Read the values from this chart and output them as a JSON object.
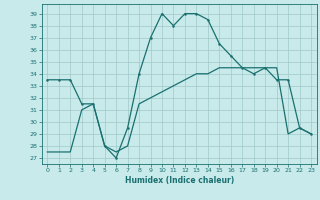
{
  "xlabel": "Humidex (Indice chaleur)",
  "ylabel": "",
  "bg_color": "#c8eaea",
  "line_color": "#1a7070",
  "grid_color": "#a0c8c8",
  "xlim": [
    -0.5,
    23.5
  ],
  "ylim": [
    26.5,
    39.8
  ],
  "yticks": [
    27,
    28,
    29,
    30,
    31,
    32,
    33,
    34,
    35,
    36,
    37,
    38,
    39
  ],
  "xticks": [
    0,
    1,
    2,
    3,
    4,
    5,
    6,
    7,
    8,
    9,
    10,
    11,
    12,
    13,
    14,
    15,
    16,
    17,
    18,
    19,
    20,
    21,
    22,
    23
  ],
  "line1_x": [
    0,
    1,
    2,
    3,
    4,
    5,
    6,
    7,
    8,
    9,
    10,
    11,
    12,
    13,
    14,
    15,
    16,
    17,
    18,
    19,
    20,
    21,
    22,
    23
  ],
  "line1_y": [
    33.5,
    33.5,
    33.5,
    31.5,
    31.5,
    28.0,
    27.0,
    29.5,
    34.0,
    37.0,
    39.0,
    38.0,
    39.0,
    39.0,
    38.5,
    36.5,
    35.5,
    34.5,
    34.0,
    34.5,
    33.5,
    33.5,
    29.5,
    29.0
  ],
  "line2_x": [
    0,
    1,
    2,
    3,
    4,
    5,
    6,
    7,
    8,
    9,
    10,
    11,
    12,
    13,
    14,
    15,
    16,
    17,
    18,
    19,
    20,
    21,
    22,
    23
  ],
  "line2_y": [
    27.5,
    27.5,
    27.5,
    31.0,
    31.5,
    28.0,
    27.5,
    28.0,
    31.5,
    32.0,
    32.5,
    33.0,
    33.5,
    34.0,
    34.0,
    34.5,
    34.5,
    34.5,
    34.5,
    34.5,
    34.5,
    29.0,
    29.5,
    29.0
  ]
}
